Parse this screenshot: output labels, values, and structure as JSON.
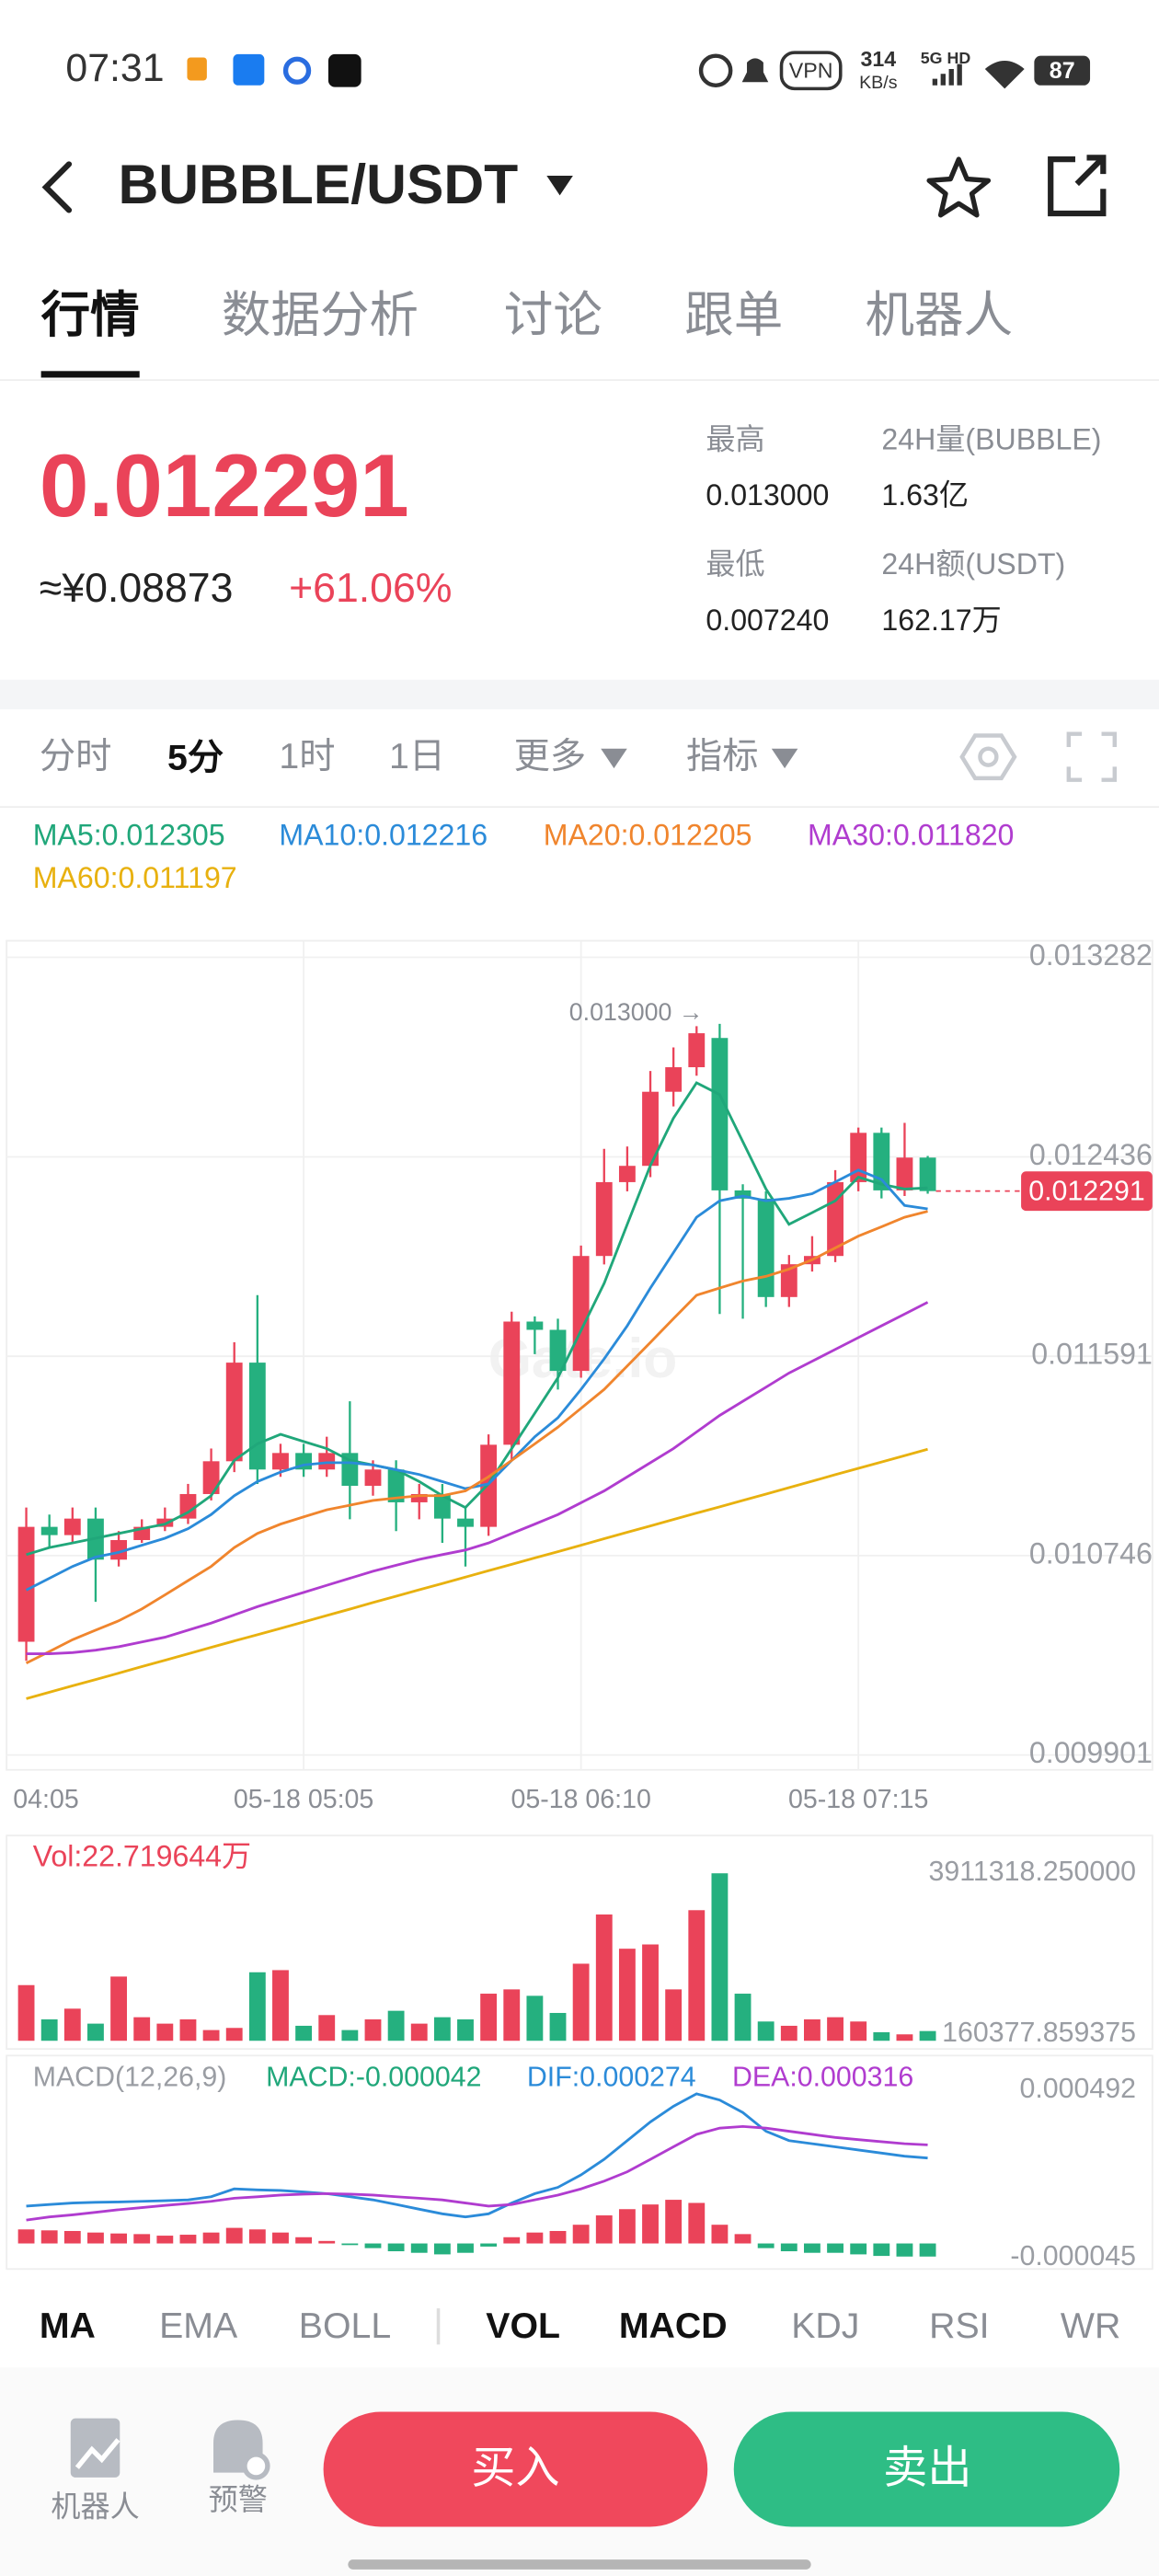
{
  "status_bar": {
    "time": "07:31",
    "net_speed": "314",
    "net_unit": "KB/s",
    "signal": "5G HD",
    "battery": "87"
  },
  "header": {
    "pair": "BUBBLE/USDT"
  },
  "tabs": [
    "行情",
    "数据分析",
    "讨论",
    "跟单",
    "机器人"
  ],
  "ticker": {
    "price": "0.012291",
    "cny": "≈¥0.08873",
    "change": "+61.06%",
    "stats": [
      {
        "label": "最高",
        "value": "0.013000"
      },
      {
        "label": "24H量(BUBBLE)",
        "value": "1.63亿"
      },
      {
        "label": "最低",
        "value": "0.007240"
      },
      {
        "label": "24H额(USDT)",
        "value": "162.17万"
      }
    ]
  },
  "intervals": [
    "分时",
    "5分",
    "1时",
    "1日",
    "更多",
    "指标"
  ],
  "chart_data": [
    {
      "type": "candlestick",
      "up_color": "#ea4359",
      "down_color": "#25b07f",
      "open": [
        0.010381,
        0.010868,
        0.010833,
        0.010903,
        0.010729,
        0.010812,
        0.010868,
        0.010903,
        0.011007,
        0.011146,
        0.011564,
        0.011111,
        0.011181,
        0.011111,
        0.011181,
        0.011042,
        0.011111,
        0.010972,
        0.011007,
        0.010903,
        0.010868,
        0.011216,
        0.011738,
        0.011703,
        0.011529,
        0.012016,
        0.012329,
        0.012398,
        0.012712,
        0.012816,
        0.01294,
        0.012294,
        0.012259,
        0.011842,
        0.011981,
        0.012016,
        0.012329,
        0.012538,
        0.012294,
        0.012433
      ],
      "high": [
        0.01095,
        0.01092,
        0.01095,
        0.01095,
        0.01085,
        0.0109,
        0.01095,
        0.01105,
        0.0112,
        0.01165,
        0.01185,
        0.01122,
        0.01122,
        0.01125,
        0.0114,
        0.01115,
        0.01115,
        0.01105,
        0.01105,
        0.01095,
        0.01126,
        0.01178,
        0.01176,
        0.01175,
        0.01206,
        0.01247,
        0.01248,
        0.0128,
        0.0129,
        0.01299,
        0.013,
        0.01232,
        0.01229,
        0.01202,
        0.0121,
        0.01238,
        0.01256,
        0.01256,
        0.01258,
        0.01244
      ],
      "low": [
        0.0103,
        0.01078,
        0.0108,
        0.01055,
        0.0107,
        0.0108,
        0.01085,
        0.01088,
        0.01098,
        0.0111,
        0.01105,
        0.01108,
        0.01108,
        0.01108,
        0.0109,
        0.011,
        0.01085,
        0.0109,
        0.0108,
        0.0107,
        0.01083,
        0.01115,
        0.0116,
        0.01145,
        0.0115,
        0.01198,
        0.01229,
        0.01235,
        0.01265,
        0.01278,
        0.01177,
        0.01175,
        0.0118,
        0.0118,
        0.01195,
        0.01199,
        0.01229,
        0.01226,
        0.01227,
        0.01228
      ],
      "close": [
        0.010868,
        0.010833,
        0.010903,
        0.010729,
        0.010812,
        0.010868,
        0.010903,
        0.011007,
        0.011146,
        0.011564,
        0.011111,
        0.011181,
        0.011111,
        0.011181,
        0.011042,
        0.011111,
        0.010972,
        0.011007,
        0.010903,
        0.010868,
        0.011216,
        0.011738,
        0.011703,
        0.011529,
        0.012016,
        0.012329,
        0.012398,
        0.012712,
        0.012816,
        0.01296,
        0.012294,
        0.012259,
        0.011842,
        0.011981,
        0.012016,
        0.012329,
        0.012538,
        0.012294,
        0.012433,
        0.012291
      ],
      "categories": [
        "04:05",
        null,
        null,
        null,
        null,
        null,
        null,
        null,
        null,
        null,
        null,
        null,
        "05-18 05:05",
        null,
        null,
        null,
        null,
        null,
        null,
        null,
        null,
        null,
        null,
        null,
        "05-18 06:10",
        null,
        null,
        null,
        null,
        null,
        null,
        null,
        null,
        null,
        null,
        null,
        "05-18 07:15",
        null,
        null,
        null
      ],
      "series": [
        {
          "name": "MA5:0.012305",
          "color": "#20a77a",
          "values": [
            0.01075,
            0.01078,
            0.0108,
            0.01082,
            0.01084,
            0.01086,
            0.01088,
            0.01093,
            0.011,
            0.01115,
            0.01122,
            0.01126,
            0.01123,
            0.0112,
            0.01115,
            0.01113,
            0.01111,
            0.01106,
            0.011,
            0.01095,
            0.01105,
            0.0112,
            0.01135,
            0.0115,
            0.0117,
            0.0119,
            0.01215,
            0.0124,
            0.0126,
            0.01275,
            0.0127,
            0.0125,
            0.0123,
            0.01215,
            0.0122,
            0.01225,
            0.01235,
            0.01232,
            0.0123,
            0.012305
          ]
        },
        {
          "name": "MA10:0.012216",
          "color": "#2b8bd9",
          "values": [
            0.0106,
            0.01065,
            0.0107,
            0.01074,
            0.01076,
            0.01079,
            0.01082,
            0.01086,
            0.01092,
            0.011,
            0.01106,
            0.0111,
            0.01113,
            0.01114,
            0.01114,
            0.01113,
            0.01111,
            0.01109,
            0.01106,
            0.01103,
            0.01105,
            0.01115,
            0.01125,
            0.01133,
            0.01145,
            0.01158,
            0.01172,
            0.01188,
            0.01203,
            0.01218,
            0.01225,
            0.01227,
            0.01225,
            0.01226,
            0.01228,
            0.01233,
            0.01238,
            0.01234,
            0.01223,
            0.012216
          ]
        },
        {
          "name": "MA20:0.012205",
          "color": "#f0852d",
          "values": [
            0.01029,
            0.01034,
            0.01039,
            0.01043,
            0.01047,
            0.01052,
            0.01058,
            0.01064,
            0.0107,
            0.01078,
            0.01084,
            0.01088,
            0.01091,
            0.01094,
            0.01096,
            0.01098,
            0.01099,
            0.011,
            0.011,
            0.01102,
            0.01108,
            0.01115,
            0.01122,
            0.01129,
            0.01137,
            0.01145,
            0.01155,
            0.01165,
            0.01175,
            0.01185,
            0.01188,
            0.01191,
            0.01193,
            0.01196,
            0.012,
            0.01205,
            0.0121,
            0.01214,
            0.01218,
            0.012205
          ]
        },
        {
          "name": "MA30:0.011820",
          "color": "#b03ccf",
          "values": [
            0.01033,
            0.01033,
            0.010335,
            0.010345,
            0.01036,
            0.01038,
            0.0104,
            0.01043,
            0.01046,
            0.010495,
            0.01053,
            0.01056,
            0.01059,
            0.01062,
            0.01065,
            0.01068,
            0.010705,
            0.01073,
            0.01075,
            0.01077,
            0.0108,
            0.01084,
            0.01088,
            0.01092,
            0.01097,
            0.01102,
            0.01108,
            0.01114,
            0.0112,
            0.01127,
            0.01134,
            0.0114,
            0.01146,
            0.01152,
            0.01157,
            0.01162,
            0.01167,
            0.01172,
            0.01177,
            0.01182
          ]
        },
        {
          "name": "MA60:0.011197",
          "color": "#e8b10f",
          "values": [
            0.01014,
            0.010167,
            0.010194,
            0.010221,
            0.010248,
            0.010276,
            0.010303,
            0.01033,
            0.010357,
            0.010384,
            0.010411,
            0.010438,
            0.010465,
            0.010492,
            0.010519,
            0.010547,
            0.010574,
            0.010601,
            0.010628,
            0.010655,
            0.010682,
            0.010709,
            0.010736,
            0.010763,
            0.01079,
            0.010818,
            0.010845,
            0.010872,
            0.010899,
            0.010926,
            0.010953,
            0.01098,
            0.011007,
            0.011034,
            0.011061,
            0.011089,
            0.011116,
            0.011143,
            0.01117,
            0.011197
          ]
        }
      ],
      "ylim": [
        0.009838,
        0.013352
      ],
      "yticks": [
        0.013282,
        0.012436,
        0.011591,
        0.010746,
        0.009901
      ],
      "grid": true,
      "annotation": "0.013000 →",
      "last_price": 0.012291
    },
    {
      "type": "bar",
      "title": "Vol:22.719644万",
      "values": [
        1300000,
        500000,
        750000,
        400000,
        1500000,
        550000,
        400000,
        500000,
        250000,
        300000,
        1600000,
        1650000,
        350000,
        600000,
        250000,
        500000,
        700000,
        400000,
        550000,
        500000,
        1100000,
        1200000,
        1050000,
        650000,
        1800000,
        2950000,
        2150000,
        2250000,
        1200000,
        3050000,
        3911318.25,
        1100000,
        450000,
        350000,
        500000,
        550000,
        450000,
        200000,
        150000,
        227196.44
      ],
      "ylim": [
        0,
        3911318.25
      ],
      "yticks": [
        {
          "value": 3911318.25,
          "label": "3911318.250000"
        },
        {
          "value": 160377.859375,
          "label": "160377.859375"
        }
      ]
    },
    {
      "type": "macd",
      "title": "MACD(12,26,9)",
      "series": [
        {
          "name": "MACD:-0.000042",
          "color": "#20a77a",
          "values": [
            4.5e-05,
            4.2e-05,
            4e-05,
            3.5e-05,
            3.2e-05,
            3e-05,
            2.5e-05,
            2.8e-05,
            3.5e-05,
            5e-05,
            4.5e-05,
            3.5e-05,
            2e-05,
            8e-06,
            -5e-06,
            -1.5e-05,
            -2.5e-05,
            -3e-05,
            -3.5e-05,
            -3e-05,
            -1e-05,
            2e-05,
            3.5e-05,
            4e-05,
            6e-05,
            9e-05,
            0.00011,
            0.000125,
            0.00014,
            0.00013,
            6e-05,
            3e-05,
            -1.5e-05,
            -2.5e-05,
            -3e-05,
            -3e-05,
            -3.5e-05,
            -4e-05,
            -4.2e-05,
            -4.2e-05
          ]
        },
        {
          "name": "DIF:0.000274",
          "color": "#2b8bd9",
          "values": [
            0.00012,
            0.000125,
            0.00013,
            0.000132,
            0.000133,
            0.000135,
            0.000137,
            0.00014,
            0.00015,
            0.000175,
            0.000172,
            0.00017,
            0.000165,
            0.00016,
            0.00015,
            0.00014,
            0.000125,
            0.00011,
            9.5e-05,
            8.5e-05,
            9.5e-05,
            0.00013,
            0.00016,
            0.00018,
            0.00022,
            0.00027,
            0.00033,
            0.00039,
            0.00044,
            0.00048,
            0.00046,
            0.00042,
            0.00036,
            0.00033,
            0.00032,
            0.00031,
            0.0003,
            0.00029,
            0.00028,
            0.000274
          ]
        },
        {
          "name": "DEA:0.000316",
          "color": "#b03ccf",
          "values": [
            7.5e-05,
            8.5e-05,
            9.2e-05,
            0.0001,
            0.000108,
            0.000115,
            0.000122,
            0.000128,
            0.000135,
            0.000145,
            0.00015,
            0.000155,
            0.000158,
            0.00016,
            0.000158,
            0.000155,
            0.00015,
            0.000145,
            0.00014,
            0.00013,
            0.00012,
            0.000125,
            0.00014,
            0.000155,
            0.000175,
            0.0002,
            0.00023,
            0.00027,
            0.00031,
            0.00035,
            0.00037,
            0.000375,
            0.00037,
            0.00036,
            0.00035,
            0.00034,
            0.000333,
            0.000326,
            0.00032,
            0.000316
          ]
        }
      ],
      "ylim": [
        -4.5e-05,
        0.000492
      ],
      "yticks": [
        0.000492,
        -4.5e-05
      ]
    }
  ],
  "indicator_tabs": [
    "MA",
    "EMA",
    "BOLL",
    "VOL",
    "MACD",
    "KDJ",
    "RSI",
    "WR"
  ],
  "bottom_bar": {
    "robot": "机器人",
    "alert": "预警",
    "buy": "买入",
    "sell": "卖出"
  }
}
